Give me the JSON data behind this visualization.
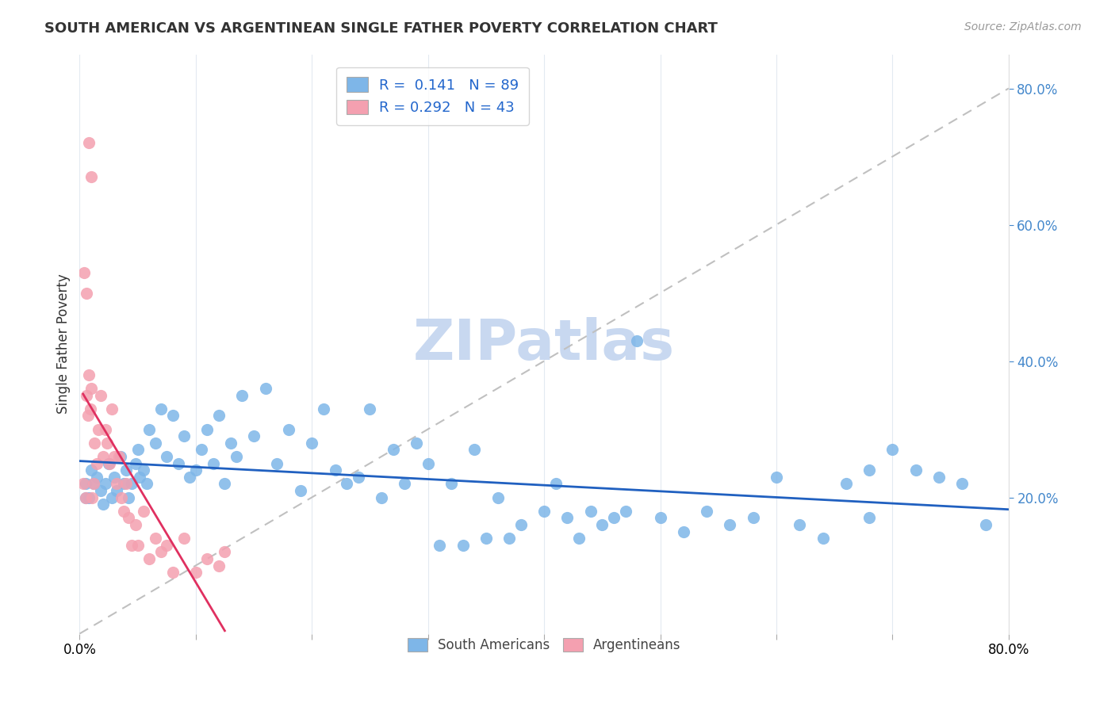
{
  "title": "SOUTH AMERICAN VS ARGENTINEAN SINGLE FATHER POVERTY CORRELATION CHART",
  "source": "Source: ZipAtlas.com",
  "ylabel_label": "Single Father Poverty",
  "legend_bottom": [
    "South Americans",
    "Argentineans"
  ],
  "x_min": 0.0,
  "x_max": 0.8,
  "y_min": 0.0,
  "y_max": 0.85,
  "x_ticks": [
    0.0,
    0.1,
    0.2,
    0.3,
    0.4,
    0.5,
    0.6,
    0.7,
    0.8
  ],
  "x_tick_labels": [
    "0.0%",
    "",
    "",
    "",
    "",
    "",
    "",
    "",
    "80.0%"
  ],
  "y_ticks_right": [
    0.2,
    0.4,
    0.6,
    0.8
  ],
  "y_tick_labels_right": [
    "20.0%",
    "40.0%",
    "60.0%",
    "80.0%"
  ],
  "blue_R": "0.141",
  "blue_N": "89",
  "pink_R": "0.292",
  "pink_N": "43",
  "blue_color": "#7EB6E8",
  "pink_color": "#F4A0B0",
  "blue_line_color": "#2060C0",
  "pink_line_color": "#E03060",
  "diagonal_color": "#C0C0C0",
  "watermark_zip": "ZIP",
  "watermark_atlas": "atlas",
  "watermark_color": "#C8D8F0",
  "south_americans_x": [
    0.005,
    0.008,
    0.01,
    0.012,
    0.015,
    0.018,
    0.02,
    0.022,
    0.025,
    0.028,
    0.03,
    0.032,
    0.035,
    0.038,
    0.04,
    0.042,
    0.045,
    0.048,
    0.05,
    0.052,
    0.055,
    0.058,
    0.06,
    0.065,
    0.07,
    0.075,
    0.08,
    0.085,
    0.09,
    0.095,
    0.1,
    0.105,
    0.11,
    0.115,
    0.12,
    0.125,
    0.13,
    0.135,
    0.14,
    0.15,
    0.16,
    0.17,
    0.18,
    0.19,
    0.2,
    0.21,
    0.22,
    0.23,
    0.24,
    0.25,
    0.26,
    0.27,
    0.28,
    0.29,
    0.3,
    0.31,
    0.32,
    0.33,
    0.34,
    0.35,
    0.36,
    0.37,
    0.38,
    0.4,
    0.41,
    0.42,
    0.43,
    0.44,
    0.45,
    0.46,
    0.47,
    0.48,
    0.5,
    0.52,
    0.54,
    0.56,
    0.58,
    0.6,
    0.62,
    0.64,
    0.66,
    0.68,
    0.7,
    0.72,
    0.74,
    0.76,
    0.78,
    0.68,
    0.005
  ],
  "south_americans_y": [
    0.22,
    0.2,
    0.24,
    0.22,
    0.23,
    0.21,
    0.19,
    0.22,
    0.25,
    0.2,
    0.23,
    0.21,
    0.26,
    0.22,
    0.24,
    0.2,
    0.22,
    0.25,
    0.27,
    0.23,
    0.24,
    0.22,
    0.3,
    0.28,
    0.33,
    0.26,
    0.32,
    0.25,
    0.29,
    0.23,
    0.24,
    0.27,
    0.3,
    0.25,
    0.32,
    0.22,
    0.28,
    0.26,
    0.35,
    0.29,
    0.36,
    0.25,
    0.3,
    0.21,
    0.28,
    0.33,
    0.24,
    0.22,
    0.23,
    0.33,
    0.2,
    0.27,
    0.22,
    0.28,
    0.25,
    0.13,
    0.22,
    0.13,
    0.27,
    0.14,
    0.2,
    0.14,
    0.16,
    0.18,
    0.22,
    0.17,
    0.14,
    0.18,
    0.16,
    0.17,
    0.18,
    0.43,
    0.17,
    0.15,
    0.18,
    0.16,
    0.17,
    0.23,
    0.16,
    0.14,
    0.22,
    0.17,
    0.27,
    0.24,
    0.23,
    0.22,
    0.16,
    0.24,
    0.2
  ],
  "argentineans_x": [
    0.003,
    0.005,
    0.006,
    0.007,
    0.008,
    0.009,
    0.01,
    0.011,
    0.012,
    0.013,
    0.015,
    0.016,
    0.018,
    0.02,
    0.022,
    0.024,
    0.026,
    0.028,
    0.03,
    0.032,
    0.034,
    0.036,
    0.038,
    0.04,
    0.042,
    0.045,
    0.048,
    0.05,
    0.055,
    0.06,
    0.065,
    0.07,
    0.075,
    0.08,
    0.09,
    0.1,
    0.11,
    0.12,
    0.125,
    0.004,
    0.006,
    0.01,
    0.008
  ],
  "argentineans_y": [
    0.22,
    0.2,
    0.35,
    0.32,
    0.38,
    0.33,
    0.36,
    0.2,
    0.22,
    0.28,
    0.25,
    0.3,
    0.35,
    0.26,
    0.3,
    0.28,
    0.25,
    0.33,
    0.26,
    0.22,
    0.26,
    0.2,
    0.18,
    0.22,
    0.17,
    0.13,
    0.16,
    0.13,
    0.18,
    0.11,
    0.14,
    0.12,
    0.13,
    0.09,
    0.14,
    0.09,
    0.11,
    0.1,
    0.12,
    0.53,
    0.5,
    0.67,
    0.72
  ]
}
